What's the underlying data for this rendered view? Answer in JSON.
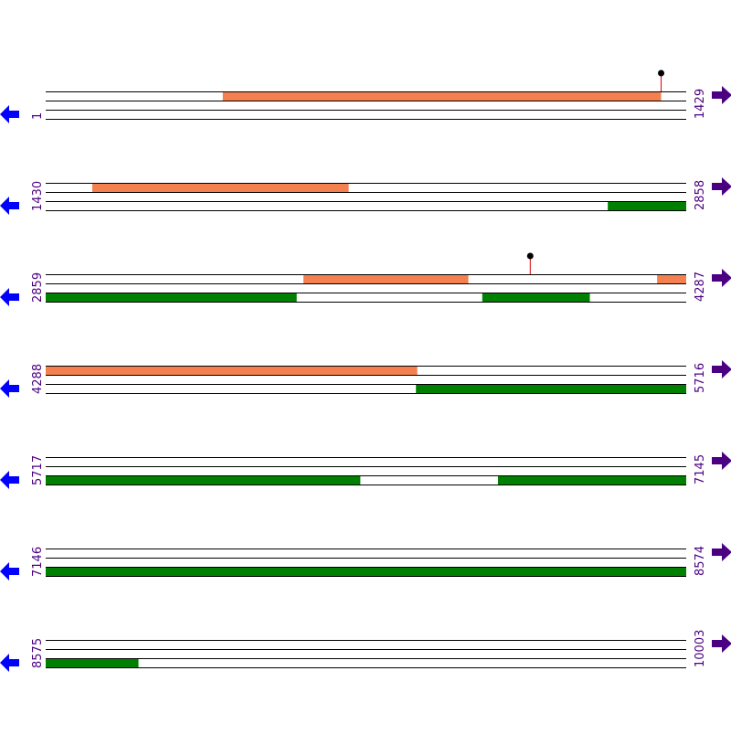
{
  "rows": [
    {
      "start": 1,
      "end": 1429
    },
    {
      "start": 1430,
      "end": 2858
    },
    {
      "start": 2859,
      "end": 4287
    },
    {
      "start": 4288,
      "end": 5716
    },
    {
      "start": 5717,
      "end": 7145
    },
    {
      "start": 7146,
      "end": 8574
    },
    {
      "start": 8575,
      "end": 10003
    }
  ],
  "features": [
    {
      "strand": "+",
      "start": 396,
      "end": 1373,
      "color": "#f4804f"
    },
    {
      "strand": "+",
      "start": 1534,
      "end": 2105,
      "color": "#f4804f"
    },
    {
      "strand": "+",
      "start": 3434,
      "end": 3801,
      "color": "#f4804f"
    },
    {
      "strand": "+",
      "start": 4223,
      "end": 5116,
      "color": "#f4804f"
    },
    {
      "strand": "-",
      "start": 2684,
      "end": 3418,
      "color": "#008000"
    },
    {
      "strand": "-",
      "start": 3833,
      "end": 4072,
      "color": "#008000"
    },
    {
      "strand": "-",
      "start": 5114,
      "end": 6418,
      "color": "#008000"
    },
    {
      "strand": "-",
      "start": 6726,
      "end": 8781,
      "color": "#008000"
    }
  ],
  "markers": [
    {
      "position": 1373
    },
    {
      "position": 3939
    }
  ]
}
